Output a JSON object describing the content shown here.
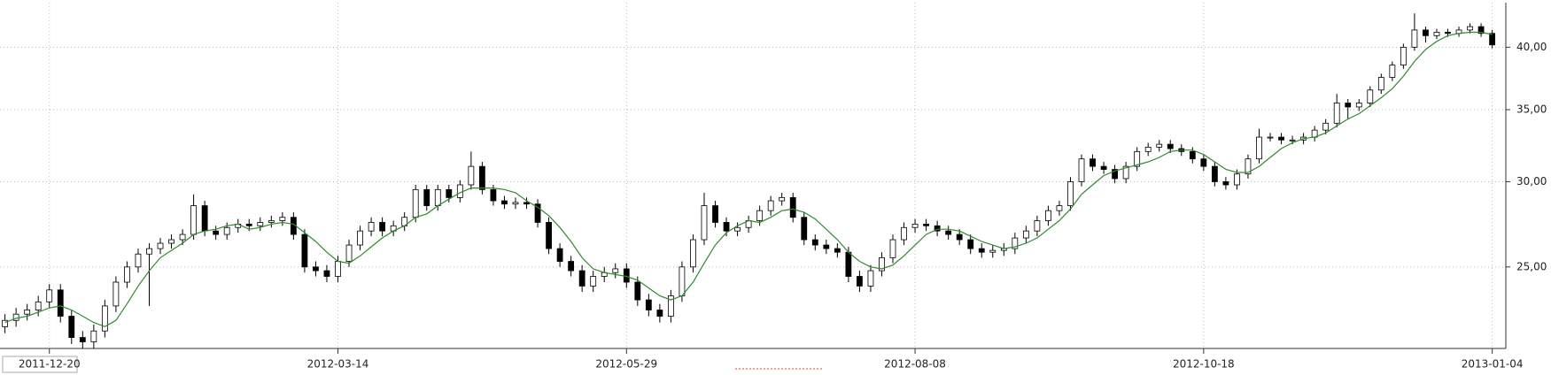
{
  "chart_data": {
    "type": "candlestick",
    "categories": [
      null,
      null,
      null,
      null,
      "2011-12-20",
      null,
      null,
      null,
      null,
      null,
      null,
      null,
      null,
      null,
      null,
      null,
      null,
      null,
      null,
      null,
      null,
      null,
      null,
      null,
      null,
      null,
      null,
      null,
      null,
      null,
      "2012-03-14",
      null,
      null,
      null,
      null,
      null,
      null,
      null,
      null,
      null,
      null,
      null,
      null,
      null,
      null,
      null,
      null,
      null,
      null,
      null,
      null,
      null,
      null,
      null,
      null,
      null,
      "2012-05-29",
      null,
      null,
      null,
      null,
      null,
      null,
      null,
      null,
      null,
      null,
      null,
      null,
      null,
      null,
      null,
      null,
      null,
      null,
      null,
      null,
      null,
      null,
      null,
      null,
      null,
      "2012-08-08",
      null,
      null,
      null,
      null,
      null,
      null,
      null,
      null,
      null,
      null,
      null,
      null,
      null,
      null,
      null,
      null,
      null,
      null,
      null,
      null,
      null,
      null,
      null,
      null,
      null,
      "2012-10-18",
      null,
      null,
      null,
      null,
      null,
      null,
      null,
      null,
      null,
      null,
      null,
      null,
      null,
      null,
      null,
      null,
      null,
      null,
      null,
      null,
      null,
      null,
      null,
      null,
      null,
      "2013-01-04"
    ],
    "open": [
      22.0,
      22.3,
      22.6,
      22.8,
      23.2,
      23.8,
      22.5,
      21.5,
      21.3,
      21.8,
      23.0,
      24.2,
      25.0,
      25.7,
      26.0,
      26.3,
      26.5,
      26.8,
      28.5,
      27.0,
      26.8,
      27.2,
      27.4,
      27.3,
      27.5,
      27.6,
      27.8,
      26.8,
      25.0,
      24.8,
      24.5,
      25.3,
      26.2,
      27.0,
      27.5,
      27.0,
      27.3,
      27.8,
      29.5,
      28.5,
      29.5,
      29.0,
      29.8,
      31.0,
      29.5,
      28.8,
      28.6,
      28.7,
      28.6,
      27.5,
      26.0,
      25.3,
      24.8,
      24.0,
      24.5,
      24.7,
      24.9,
      24.2,
      23.3,
      22.8,
      22.5,
      23.5,
      25.0,
      26.5,
      28.5,
      27.5,
      27.0,
      27.2,
      27.6,
      28.2,
      28.8,
      29.0,
      27.8,
      26.5,
      26.2,
      26.0,
      25.8,
      24.5,
      24.0,
      24.8,
      25.5,
      26.5,
      27.2,
      27.4,
      27.3,
      27.0,
      26.8,
      26.5,
      26.0,
      25.8,
      25.9,
      26.0,
      26.6,
      27.0,
      27.6,
      28.2,
      28.5,
      30.0,
      31.5,
      31.0,
      30.8,
      30.2,
      31.0,
      32.0,
      32.3,
      32.5,
      32.2,
      32.0,
      31.5,
      31.0,
      30.0,
      29.8,
      30.5,
      31.5,
      33.0,
      33.0,
      32.8,
      32.8,
      33.0,
      33.5,
      34.0,
      35.5,
      35.2,
      35.5,
      36.5,
      37.5,
      38.5,
      40.0,
      41.5,
      41.0,
      41.3,
      41.2,
      41.5,
      41.8,
      41.2
    ],
    "high": [
      22.6,
      22.9,
      23.1,
      23.5,
      24.1,
      24.1,
      22.8,
      21.8,
      22.1,
      23.3,
      24.5,
      25.3,
      26.0,
      26.3,
      26.6,
      26.8,
      27.1,
      29.2,
      28.8,
      27.3,
      27.5,
      27.7,
      27.7,
      27.8,
      27.9,
      28.1,
      28.1,
      27.1,
      25.3,
      25.1,
      25.6,
      26.5,
      27.3,
      27.8,
      27.8,
      27.6,
      28.1,
      29.8,
      29.8,
      29.8,
      29.8,
      30.1,
      32.0,
      31.3,
      29.8,
      29.1,
      29.0,
      29.0,
      28.9,
      27.8,
      26.3,
      25.6,
      25.1,
      24.8,
      25.0,
      25.2,
      25.2,
      24.5,
      23.6,
      23.1,
      23.8,
      25.3,
      26.8,
      29.3,
      28.8,
      27.8,
      27.5,
      27.9,
      28.5,
      29.1,
      29.3,
      29.3,
      28.1,
      26.8,
      26.5,
      26.3,
      26.1,
      24.8,
      25.1,
      25.8,
      26.8,
      27.5,
      27.7,
      27.7,
      27.6,
      27.3,
      27.1,
      26.8,
      26.3,
      26.2,
      26.3,
      26.9,
      27.3,
      27.9,
      28.5,
      28.8,
      30.3,
      31.8,
      31.8,
      31.3,
      31.1,
      31.3,
      32.3,
      32.6,
      32.8,
      32.8,
      32.5,
      32.3,
      31.8,
      31.3,
      30.3,
      30.8,
      31.8,
      33.6,
      33.3,
      33.3,
      33.1,
      33.3,
      33.8,
      34.3,
      36.2,
      35.8,
      35.8,
      36.8,
      37.8,
      38.8,
      40.3,
      43.0,
      41.8,
      41.6,
      41.6,
      41.8,
      42.1,
      42.1,
      41.5
    ],
    "low": [
      21.7,
      22.0,
      22.3,
      22.5,
      22.9,
      22.2,
      21.2,
      21.0,
      21.0,
      21.5,
      22.7,
      23.9,
      24.7,
      23.0,
      25.7,
      26.0,
      26.2,
      26.5,
      26.7,
      26.5,
      26.5,
      26.9,
      27.0,
      27.0,
      27.2,
      27.3,
      26.5,
      24.7,
      24.5,
      24.2,
      24.2,
      25.0,
      25.9,
      26.7,
      26.7,
      26.7,
      27.0,
      27.5,
      28.2,
      28.2,
      28.7,
      28.7,
      29.5,
      29.2,
      28.5,
      28.3,
      28.3,
      28.3,
      27.2,
      25.7,
      25.0,
      24.5,
      23.7,
      23.7,
      24.2,
      24.4,
      23.9,
      23.0,
      22.5,
      22.2,
      22.2,
      23.2,
      24.7,
      26.2,
      27.2,
      26.7,
      26.7,
      26.9,
      27.3,
      27.9,
      28.5,
      27.5,
      26.2,
      25.9,
      25.7,
      25.5,
      24.2,
      23.7,
      23.7,
      24.5,
      25.2,
      26.2,
      26.9,
      27.0,
      26.7,
      26.5,
      26.2,
      25.7,
      25.5,
      25.5,
      25.6,
      25.7,
      26.3,
      26.7,
      27.3,
      27.9,
      28.2,
      29.7,
      30.7,
      30.5,
      29.9,
      29.9,
      30.7,
      31.7,
      32.0,
      31.9,
      31.7,
      31.2,
      30.7,
      29.7,
      29.5,
      29.5,
      30.2,
      31.2,
      32.7,
      32.5,
      32.5,
      32.5,
      32.7,
      33.2,
      33.7,
      34.3,
      34.9,
      35.2,
      36.2,
      37.2,
      38.2,
      39.7,
      40.4,
      40.7,
      40.9,
      40.9,
      41.2,
      40.9,
      39.9
    ],
    "close": [
      22.3,
      22.6,
      22.8,
      23.2,
      23.8,
      22.5,
      21.5,
      21.3,
      21.8,
      23.0,
      24.2,
      25.0,
      25.7,
      26.0,
      26.3,
      26.5,
      26.8,
      28.5,
      27.0,
      26.8,
      27.2,
      27.4,
      27.3,
      27.5,
      27.6,
      27.8,
      26.8,
      25.0,
      24.8,
      24.5,
      25.3,
      26.2,
      27.0,
      27.5,
      27.0,
      27.3,
      27.8,
      29.5,
      28.5,
      29.5,
      29.0,
      29.8,
      31.0,
      29.5,
      28.8,
      28.6,
      28.7,
      28.6,
      27.5,
      26.0,
      25.3,
      24.8,
      24.0,
      24.5,
      24.7,
      24.9,
      24.2,
      23.3,
      22.8,
      22.5,
      23.5,
      25.0,
      26.5,
      28.5,
      27.5,
      27.0,
      27.2,
      27.6,
      28.2,
      28.8,
      29.0,
      27.8,
      26.5,
      26.2,
      26.0,
      25.8,
      24.5,
      24.0,
      24.8,
      25.5,
      26.5,
      27.2,
      27.4,
      27.3,
      27.0,
      26.8,
      26.5,
      26.0,
      25.8,
      25.9,
      26.0,
      26.6,
      27.0,
      27.6,
      28.2,
      28.5,
      30.0,
      31.5,
      31.0,
      30.8,
      30.2,
      31.0,
      32.0,
      32.3,
      32.5,
      32.2,
      32.0,
      31.5,
      31.0,
      30.0,
      29.8,
      30.5,
      31.5,
      33.0,
      33.0,
      32.8,
      32.8,
      33.0,
      33.5,
      34.0,
      35.5,
      35.2,
      35.5,
      36.5,
      37.5,
      38.5,
      40.0,
      41.5,
      41.0,
      41.3,
      41.2,
      41.5,
      41.8,
      41.2,
      40.2
    ],
    "ma": [
      22.2,
      22.4,
      22.5,
      22.7,
      22.9,
      23.0,
      22.8,
      22.5,
      22.2,
      22.0,
      22.3,
      23.1,
      24.0,
      24.8,
      25.5,
      25.9,
      26.3,
      26.8,
      27.0,
      27.1,
      27.3,
      27.4,
      27.1,
      27.2,
      27.4,
      27.5,
      27.4,
      26.9,
      26.4,
      25.8,
      25.3,
      25.2,
      25.6,
      26.1,
      26.6,
      27.0,
      27.3,
      27.8,
      28.0,
      28.5,
      28.9,
      29.3,
      29.6,
      29.6,
      29.6,
      29.5,
      29.3,
      28.8,
      28.4,
      27.9,
      27.2,
      26.4,
      25.5,
      24.9,
      24.7,
      24.6,
      24.5,
      24.3,
      23.9,
      23.5,
      23.3,
      23.5,
      24.2,
      25.2,
      26.2,
      26.9,
      27.3,
      27.6,
      27.5,
      27.8,
      28.2,
      28.3,
      28.1,
      27.7,
      27.1,
      26.5,
      25.8,
      25.3,
      25.0,
      24.9,
      25.1,
      25.6,
      26.2,
      26.8,
      27.1,
      27.1,
      27.0,
      26.7,
      26.4,
      26.2,
      26.0,
      26.1,
      26.3,
      26.6,
      27.1,
      27.6,
      28.3,
      29.2,
      29.8,
      30.4,
      30.7,
      30.9,
      31.1,
      31.3,
      31.6,
      32.0,
      32.1,
      32.1,
      31.8,
      31.3,
      30.8,
      30.6,
      30.6,
      31.0,
      31.6,
      32.2,
      32.6,
      32.9,
      33.0,
      33.3,
      33.8,
      34.3,
      34.7,
      35.3,
      35.9,
      36.6,
      37.6,
      38.8,
      39.8,
      40.5,
      41.0,
      41.2,
      41.3,
      41.3,
      41.1
    ],
    "ma_color": "#2e8b2e",
    "up_color": "#ffffff",
    "down_color": "#000000",
    "ylim": [
      21,
      44
    ],
    "yscale": "log",
    "yticks": [
      {
        "value": 25,
        "label": "25,00"
      },
      {
        "value": 30,
        "label": "30,00"
      },
      {
        "value": 35,
        "label": "35,00"
      },
      {
        "value": 40,
        "label": "40,00"
      }
    ],
    "grid": true
  }
}
